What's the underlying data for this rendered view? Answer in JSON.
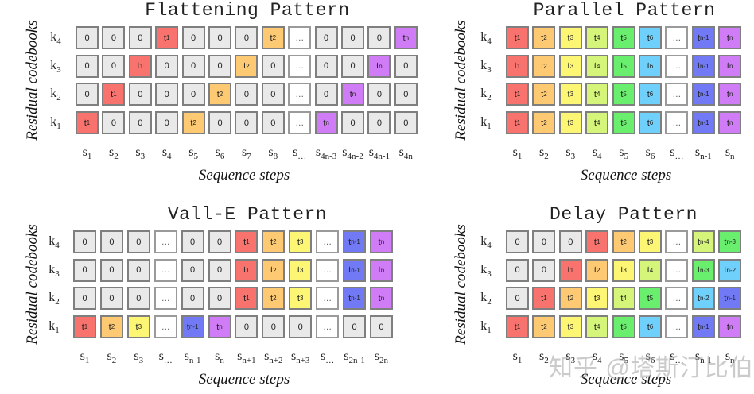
{
  "colors": {
    "zero": "#e9e9e9",
    "dots": "#ffffff",
    "border": "#7f7f7f",
    "t1": "#f8736e",
    "t2": "#fdca73",
    "t3": "#fdf574",
    "t4": "#d4f57a",
    "t5": "#6aee6e",
    "t6": "#6fd1fb",
    "tn-4": "#d4f57a",
    "tn-3": "#6aee6e",
    "tn-2": "#6fd1fb",
    "tn-1": "#7179f5",
    "tn": "#d07cf7"
  },
  "watermark": "知乎 @塔斯汀比伯",
  "chart_data": [
    {
      "type": "table",
      "title": "Flattening Pattern",
      "xlabel": "Sequence steps",
      "ylabel": "Residual codebooks",
      "rows": [
        "k4",
        "k3",
        "k2",
        "k1"
      ],
      "columns": [
        "s1",
        "s2",
        "s3",
        "s4",
        "s5",
        "s6",
        "s7",
        "s8",
        "s…",
        "s4n-3",
        "s4n-2",
        "s4n-1",
        "s4n"
      ],
      "cells": [
        [
          "0",
          "0",
          "0",
          "t1",
          "0",
          "0",
          "0",
          "t2",
          "...",
          "0",
          "0",
          "0",
          "tn"
        ],
        [
          "0",
          "0",
          "t1",
          "0",
          "0",
          "0",
          "t2",
          "0",
          "...",
          "0",
          "0",
          "tn",
          "0"
        ],
        [
          "0",
          "t1",
          "0",
          "0",
          "0",
          "t2",
          "0",
          "0",
          "...",
          "0",
          "tn",
          "0",
          "0"
        ],
        [
          "t1",
          "0",
          "0",
          "0",
          "t2",
          "0",
          "0",
          "0",
          "...",
          "tn",
          "0",
          "0",
          "0"
        ]
      ]
    },
    {
      "type": "table",
      "title": "Parallel Pattern",
      "xlabel": "Sequence steps",
      "ylabel": "Residual codebooks",
      "rows": [
        "k4",
        "k3",
        "k2",
        "k1"
      ],
      "columns": [
        "s1",
        "s2",
        "s3",
        "s4",
        "s5",
        "s6",
        "s…",
        "sn-1",
        "sn"
      ],
      "cells": [
        [
          "t1",
          "t2",
          "t3",
          "t4",
          "t5",
          "t6",
          "...",
          "tn-1",
          "tn"
        ],
        [
          "t1",
          "t2",
          "t3",
          "t4",
          "t5",
          "t6",
          "...",
          "tn-1",
          "tn"
        ],
        [
          "t1",
          "t2",
          "t3",
          "t4",
          "t5",
          "t6",
          "...",
          "tn-1",
          "tn"
        ],
        [
          "t1",
          "t2",
          "t3",
          "t4",
          "t5",
          "t6",
          "...",
          "tn-1",
          "tn"
        ]
      ]
    },
    {
      "type": "table",
      "title": "Vall-E Pattern",
      "xlabel": "Sequence steps",
      "ylabel": "Residual codebooks",
      "rows": [
        "k4",
        "k3",
        "k2",
        "k1"
      ],
      "columns": [
        "s1",
        "s2",
        "s3",
        "s…",
        "sn-1",
        "sn",
        "sn+1",
        "sn+2",
        "sn+3",
        "s…",
        "s2n-1",
        "s2n"
      ],
      "cells": [
        [
          "0",
          "0",
          "0",
          "...",
          "0",
          "0",
          "t1",
          "t2",
          "t3",
          "...",
          "tn-1",
          "tn"
        ],
        [
          "0",
          "0",
          "0",
          "...",
          "0",
          "0",
          "t1",
          "t2",
          "t3",
          "...",
          "tn-1",
          "tn"
        ],
        [
          "0",
          "0",
          "0",
          "...",
          "0",
          "0",
          "t1",
          "t2",
          "t3",
          "...",
          "tn-1",
          "tn"
        ],
        [
          "t1",
          "t2",
          "t3",
          "...",
          "tn-1",
          "tn",
          "0",
          "0",
          "0",
          "...",
          "0",
          "0"
        ]
      ]
    },
    {
      "type": "table",
      "title": "Delay Pattern",
      "xlabel": "Sequence steps",
      "ylabel": "Residual codebooks",
      "rows": [
        "k4",
        "k3",
        "k2",
        "k1"
      ],
      "columns": [
        "s1",
        "s2",
        "s3",
        "s4",
        "s5",
        "s6",
        "s…",
        "sn-1",
        "sn"
      ],
      "cells": [
        [
          "0",
          "0",
          "0",
          "t1",
          "t2",
          "t3",
          "...",
          "tn-4",
          "tn-3"
        ],
        [
          "0",
          "0",
          "t1",
          "t2",
          "t3",
          "t4",
          "...",
          "tn-3",
          "tn-2"
        ],
        [
          "0",
          "t1",
          "t2",
          "t3",
          "t4",
          "t5",
          "...",
          "tn-2",
          "tn-1"
        ],
        [
          "t1",
          "t2",
          "t3",
          "t4",
          "t5",
          "t6",
          "...",
          "tn-1",
          "tn"
        ]
      ]
    }
  ],
  "panels": [
    {
      "title": "Flattening Pattern",
      "xlabel": "Sequence steps",
      "ylabel": "Residual codebooks"
    },
    {
      "title": "Parallel Pattern",
      "xlabel": "Sequence steps",
      "ylabel": "Residual codebooks"
    },
    {
      "title": "Vall-E Pattern",
      "xlabel": "Sequence steps",
      "ylabel": "Residual codebooks"
    },
    {
      "title": "Delay Pattern",
      "xlabel": "Sequence steps",
      "ylabel": "Residual codebooks"
    }
  ]
}
